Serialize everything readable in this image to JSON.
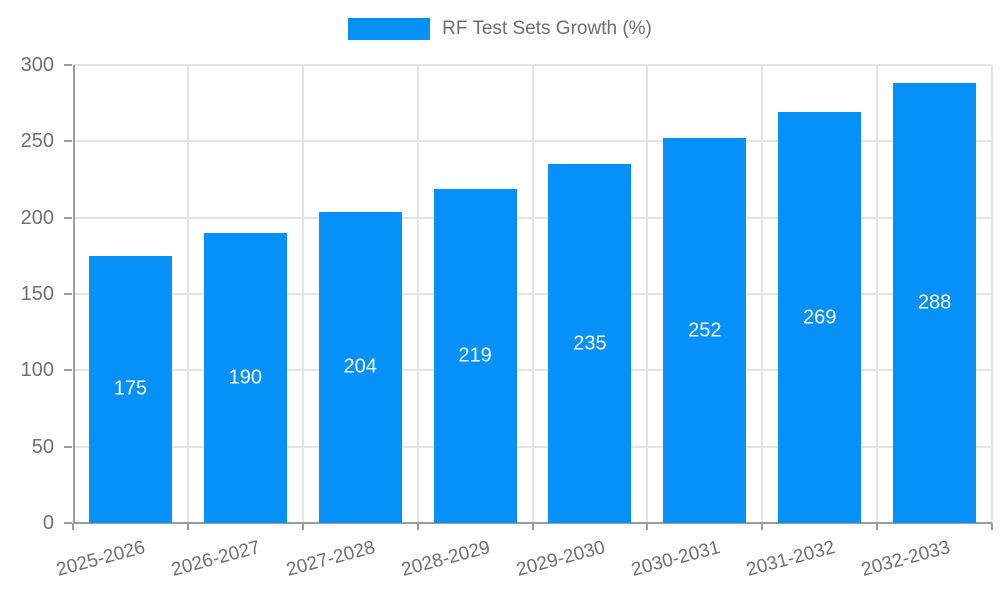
{
  "chart_data": {
    "type": "bar",
    "title": "",
    "legend": {
      "label": "RF Test Sets Growth (%)",
      "position": "top"
    },
    "categories": [
      "2025-2026",
      "2026-2027",
      "2027-2028",
      "2028-2029",
      "2029-2030",
      "2030-2031",
      "2031-2032",
      "2032-2033"
    ],
    "series": [
      {
        "name": "RF Test Sets Growth (%)",
        "values": [
          175,
          190,
          204,
          219,
          235,
          252,
          269,
          288
        ]
      }
    ],
    "value_labels": [
      "175",
      "190",
      "204",
      "219",
      "235",
      "252",
      "269",
      "288"
    ],
    "ylim": [
      0,
      300
    ],
    "yticks": [
      0,
      50,
      100,
      150,
      200,
      250,
      300
    ],
    "grid": true,
    "colors": {
      "bar": "#0591f8",
      "value_label": "#ffffff",
      "grid": "#e4e4e4",
      "axis": "#9c9c9c",
      "tick_label": "#707070",
      "background": "#ffffff"
    }
  }
}
